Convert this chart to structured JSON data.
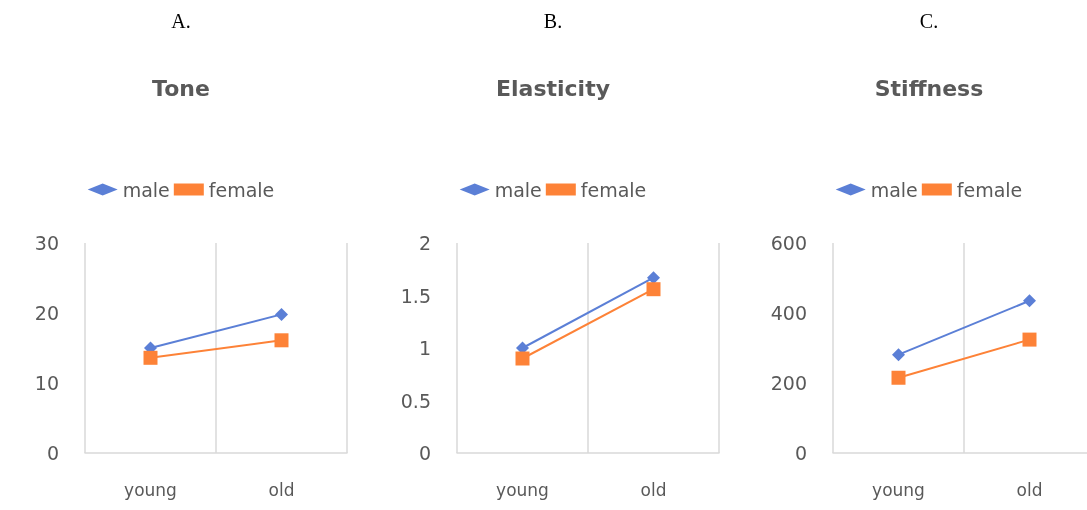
{
  "chart_data": [
    {
      "type": "line",
      "title": "Tone",
      "annotations": [
        "A."
      ],
      "categories": [
        "young",
        "old"
      ],
      "series": [
        {
          "name": "male",
          "color": "#5b7fd6",
          "marker": "diamond",
          "values": [
            15.0,
            19.8
          ]
        },
        {
          "name": "female",
          "color": "#fd8237",
          "marker": "square",
          "values": [
            13.6,
            16.1
          ]
        }
      ],
      "ylim": [
        0,
        30
      ],
      "yticks": [
        0,
        10,
        20,
        30
      ],
      "grid": "x",
      "legend": "top"
    },
    {
      "type": "line",
      "title": "Elasticity",
      "annotations": [
        "B."
      ],
      "categories": [
        "young",
        "old"
      ],
      "series": [
        {
          "name": "male",
          "color": "#5b7fd6",
          "marker": "diamond",
          "values": [
            1.0,
            1.67
          ]
        },
        {
          "name": "female",
          "color": "#fd8237",
          "marker": "square",
          "values": [
            0.9,
            1.56
          ]
        }
      ],
      "ylim": [
        0,
        2
      ],
      "yticks": [
        0,
        0.5,
        1,
        1.5,
        2
      ],
      "grid": "x",
      "legend": "top"
    },
    {
      "type": "line",
      "title": "Stiffness",
      "annotations": [
        "C."
      ],
      "categories": [
        "young",
        "old"
      ],
      "series": [
        {
          "name": "male",
          "color": "#5b7fd6",
          "marker": "diamond",
          "values": [
            281,
            435
          ]
        },
        {
          "name": "female",
          "color": "#fd8237",
          "marker": "square",
          "values": [
            215,
            324
          ]
        }
      ],
      "ylim": [
        0,
        600
      ],
      "yticks": [
        0,
        200,
        400,
        600
      ],
      "grid": "x",
      "legend": "top"
    }
  ]
}
